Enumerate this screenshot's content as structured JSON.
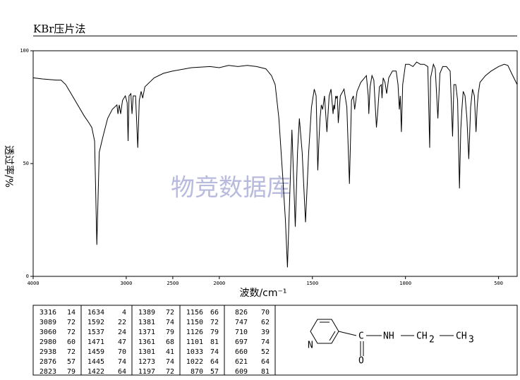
{
  "chart_data": {
    "type": "line",
    "title": "KBr压片法",
    "ylabel": "透过率/%",
    "xlabel": "波数/cm⁻¹",
    "watermark": "物竞数据库",
    "xlim": [
      4000,
      400
    ],
    "ylim": [
      0,
      100
    ],
    "xscale": {
      "break": 2000,
      "ratio": 2
    },
    "xticks": [
      4000,
      3000,
      2500,
      2000,
      1500,
      1000,
      500
    ],
    "yticks": [
      0,
      50,
      100
    ],
    "x": [
      4000,
      3900,
      3750,
      3700,
      3650,
      3550,
      3450,
      3400,
      3370,
      3340,
      3316,
      3290,
      3250,
      3200,
      3150,
      3100,
      3089,
      3075,
      3060,
      3040,
      3010,
      2990,
      2980,
      2970,
      2950,
      2938,
      2925,
      2900,
      2876,
      2860,
      2840,
      2823,
      2800,
      2700,
      2600,
      2500,
      2300,
      2100,
      2000,
      1950,
      1900,
      1850,
      1800,
      1750,
      1720,
      1700,
      1680,
      1660,
      1645,
      1634,
      1620,
      1610,
      1592,
      1580,
      1570,
      1555,
      1537,
      1520,
      1505,
      1490,
      1480,
      1471,
      1465,
      1459,
      1452,
      1445,
      1435,
      1422,
      1410,
      1400,
      1389,
      1385,
      1381,
      1375,
      1371,
      1366,
      1361,
      1350,
      1330,
      1315,
      1301,
      1290,
      1280,
      1273,
      1260,
      1240,
      1220,
      1210,
      1200,
      1197,
      1190,
      1180,
      1170,
      1156,
      1150,
      1140,
      1130,
      1126,
      1120,
      1110,
      1101,
      1090,
      1070,
      1050,
      1040,
      1033,
      1028,
      1022,
      1015,
      1000,
      980,
      960,
      940,
      920,
      900,
      880,
      870,
      865,
      850,
      840,
      826,
      815,
      800,
      780,
      760,
      747,
      740,
      730,
      720,
      710,
      703,
      697,
      690,
      680,
      670,
      660,
      650,
      640,
      630,
      621,
      615,
      609,
      600,
      570,
      540,
      500,
      470,
      450,
      430,
      400
    ],
    "series": [
      {
        "color": "#000000",
        "values": [
          88,
          87.5,
          87,
          87,
          85,
          78,
          71,
          68,
          66,
          60,
          14,
          55,
          62,
          70,
          74,
          76,
          72,
          76,
          72,
          78,
          80,
          77,
          60,
          80,
          81,
          72,
          80,
          80,
          57,
          78,
          82,
          79,
          84,
          88,
          90,
          91,
          92.5,
          93,
          92.5,
          93.5,
          93,
          93.5,
          93,
          92,
          89,
          85,
          70,
          45,
          25,
          4,
          40,
          65,
          22,
          55,
          70,
          55,
          24,
          55,
          75,
          83,
          80,
          47,
          60,
          70,
          76,
          74,
          80,
          64,
          80,
          83,
          72,
          76,
          74,
          80,
          79,
          80,
          68,
          80,
          83,
          75,
          41,
          78,
          80,
          74,
          82,
          86,
          88,
          89,
          80,
          72,
          84,
          89,
          87,
          66,
          72,
          84,
          85,
          79,
          88,
          86,
          81,
          88,
          91,
          91,
          85,
          74,
          80,
          64,
          85,
          94,
          94,
          93,
          95,
          94,
          94,
          93,
          57,
          88,
          94,
          92,
          70,
          90,
          93,
          93,
          91,
          62,
          85,
          85,
          78,
          39,
          65,
          74,
          82,
          80,
          70,
          52,
          75,
          83,
          80,
          64,
          75,
          81,
          86,
          89,
          91,
          93,
          94,
          93.5,
          90,
          85
        ]
      }
    ]
  },
  "peak_table": [
    [
      [
        "3316",
        "14"
      ],
      [
        "3089",
        "72"
      ],
      [
        "3060",
        "72"
      ],
      [
        "2980",
        "60"
      ],
      [
        "2938",
        "72"
      ],
      [
        "2876",
        "57"
      ],
      [
        "2823",
        "79"
      ]
    ],
    [
      [
        "1634",
        "4"
      ],
      [
        "1592",
        "22"
      ],
      [
        "1537",
        "24"
      ],
      [
        "1471",
        "47"
      ],
      [
        "1459",
        "70"
      ],
      [
        "1445",
        "74"
      ],
      [
        "1422",
        "64"
      ]
    ],
    [
      [
        "1389",
        "72"
      ],
      [
        "1381",
        "74"
      ],
      [
        "1371",
        "79"
      ],
      [
        "1361",
        "68"
      ],
      [
        "1301",
        "41"
      ],
      [
        "1273",
        "74"
      ],
      [
        "1197",
        "72"
      ]
    ],
    [
      [
        "1156",
        "66"
      ],
      [
        "1150",
        "72"
      ],
      [
        "1126",
        "79"
      ],
      [
        "1101",
        "81"
      ],
      [
        "1033",
        "74"
      ],
      [
        "1022",
        "64"
      ],
      [
        "870",
        "57"
      ]
    ],
    [
      [
        "826",
        "70"
      ],
      [
        "747",
        "62"
      ],
      [
        "710",
        "39"
      ],
      [
        "697",
        "74"
      ],
      [
        "660",
        "52"
      ],
      [
        "621",
        "64"
      ],
      [
        "609",
        "81"
      ]
    ]
  ],
  "structure": {
    "carbonyl": "C",
    "oxygen": "O",
    "ring_n": "N",
    "amine": "NH",
    "ch2": "CH",
    "ch2_sub": "2",
    "ch3": "CH",
    "ch3_sub": "3"
  }
}
